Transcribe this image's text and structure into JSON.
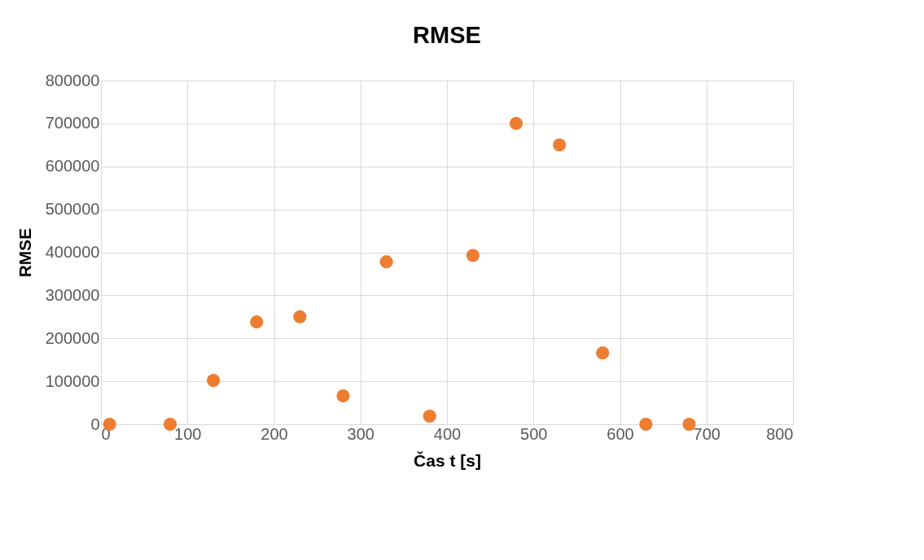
{
  "chart_data": {
    "type": "scatter",
    "title": "RMSE",
    "xlabel": "Čas t [s]",
    "ylabel": "RMSE",
    "x": [
      10,
      80,
      130,
      180,
      230,
      280,
      330,
      380,
      430,
      480,
      530,
      580,
      630,
      680
    ],
    "series": [
      {
        "color": "#ed7d31",
        "values": [
          0,
          0,
          102000,
          238000,
          250000,
          66000,
          378000,
          19000,
          393000,
          700000,
          650000,
          166000,
          0,
          0
        ]
      }
    ],
    "xlim": [
      0,
      800
    ],
    "xticks": [
      0,
      100,
      200,
      300,
      400,
      500,
      600,
      700,
      800
    ],
    "ylim": [
      0,
      800000
    ],
    "yticks": [
      0,
      100000,
      200000,
      300000,
      400000,
      500000,
      600000,
      700000,
      800000
    ],
    "grid": true,
    "marker": "circle",
    "legend": false
  }
}
